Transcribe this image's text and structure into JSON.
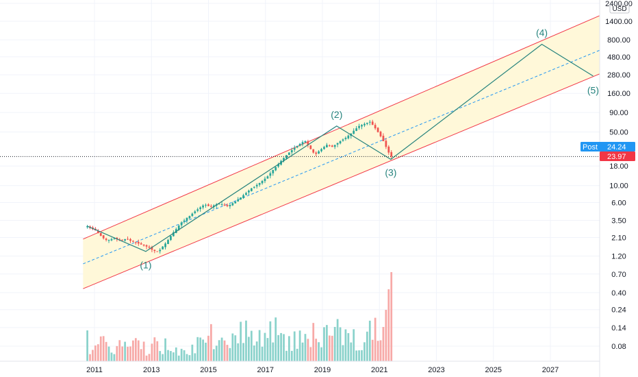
{
  "chart_data": {
    "type": "candlestick",
    "scale": "log",
    "currency_label": "USD",
    "y_tick_labels": [
      "2400.00",
      "1400.00",
      "800.00",
      "480.00",
      "280.00",
      "160.00",
      "90.00",
      "50.00",
      "18.00",
      "10.00",
      "6.00",
      "3.50",
      "2.10",
      "1.20",
      "0.70",
      "0.40",
      "0.24",
      "0.14",
      "0.08"
    ],
    "x_tick_labels": [
      "2011",
      "2013",
      "2015",
      "2017",
      "2019",
      "2021",
      "2023",
      "2025",
      "2027"
    ],
    "badges": {
      "post": {
        "label": "Post",
        "value": "24.24",
        "color": "#2196f3"
      },
      "last": {
        "value": "23.97",
        "color": "#f23645"
      }
    },
    "last_price": 23.97,
    "wave_labels": [
      {
        "label": "(1)",
        "date": 2012.8,
        "price": 1.3
      },
      {
        "label": "(2)",
        "date": 2019.5,
        "price": 60
      },
      {
        "label": "(3)",
        "date": 2021.4,
        "price": 22
      },
      {
        "label": "(4)",
        "date": 2026.7,
        "price": 700
      },
      {
        "label": "(5)",
        "date": 2028.5,
        "price": 260
      }
    ],
    "wave_path": [
      {
        "date": 2010.75,
        "price": 2.95
      },
      {
        "date": 2012.8,
        "price": 1.38
      },
      {
        "date": 2019.5,
        "price": 60
      },
      {
        "date": 2021.4,
        "price": 22
      },
      {
        "date": 2026.7,
        "price": 700
      },
      {
        "date": 2028.5,
        "price": 270
      }
    ],
    "channel": {
      "start_date": 2010.6,
      "end_date": 2028.8,
      "upper": [
        2.0,
        1700
      ],
      "mid": [
        0.95,
        600
      ],
      "lower": [
        0.45,
        295
      ],
      "fill": "#fff8d9",
      "line_color": "#f23645",
      "mid_color": "#2196f3"
    },
    "monthly_closes": [
      2.95,
      2.8,
      2.7,
      2.6,
      2.4,
      2.2,
      2.05,
      1.95,
      1.95,
      2.0,
      2.05,
      2.0,
      1.95,
      1.95,
      2.0,
      2.0,
      1.9,
      1.85,
      1.8,
      1.75,
      1.7,
      1.65,
      1.6,
      1.55,
      1.45,
      1.4,
      1.38,
      1.45,
      1.6,
      1.75,
      1.95,
      2.2,
      2.45,
      2.7,
      3.0,
      3.3,
      3.5,
      3.8,
      4.0,
      4.3,
      4.6,
      4.9,
      5.2,
      5.5,
      5.6,
      5.4,
      5.3,
      5.5,
      5.7,
      5.8,
      5.7,
      5.5,
      5.4,
      5.6,
      5.9,
      6.2,
      6.6,
      7.0,
      7.5,
      8.0,
      8.6,
      9.2,
      9.6,
      10.2,
      10.8,
      11.5,
      12.3,
      13.2,
      14.5,
      16,
      17.5,
      19,
      21,
      23,
      25,
      27,
      29,
      31,
      33,
      35,
      37,
      38,
      34,
      30,
      27,
      26,
      28,
      30,
      32,
      34,
      33,
      32,
      34,
      36,
      38,
      40,
      42,
      45,
      48,
      52,
      56,
      60,
      62,
      64,
      66,
      68,
      62,
      56,
      50,
      44,
      38,
      32,
      27,
      24
    ]
  }
}
